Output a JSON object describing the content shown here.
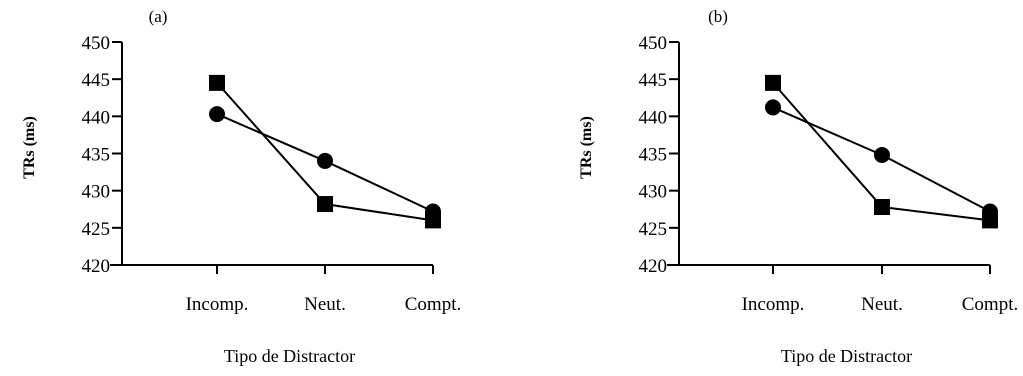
{
  "chart_data": [
    {
      "type": "line",
      "title": "(a)",
      "xlabel": "Tipo de Distractor",
      "ylabel": "TRs (ms)",
      "categories": [
        "Incomp.",
        "Neut.",
        "Compt."
      ],
      "ylim": [
        420,
        450
      ],
      "yticks": [
        420,
        425,
        430,
        435,
        440,
        445,
        450
      ],
      "grid": false,
      "series": [
        {
          "marker": "square",
          "values": [
            444.5,
            428.2,
            426.0
          ]
        },
        {
          "marker": "circle",
          "values": [
            440.3,
            434.0,
            427.2
          ]
        }
      ]
    },
    {
      "type": "line",
      "title": "(b)",
      "xlabel": "Tipo de Distractor",
      "ylabel": "TRs (ms)",
      "categories": [
        "Incomp.",
        "Neut.",
        "Compt."
      ],
      "ylim": [
        420,
        450
      ],
      "yticks": [
        420,
        425,
        430,
        435,
        440,
        445,
        450
      ],
      "grid": false,
      "series": [
        {
          "marker": "square",
          "values": [
            444.5,
            427.8,
            426.0
          ]
        },
        {
          "marker": "circle",
          "values": [
            441.2,
            434.8,
            427.2
          ]
        }
      ]
    }
  ]
}
